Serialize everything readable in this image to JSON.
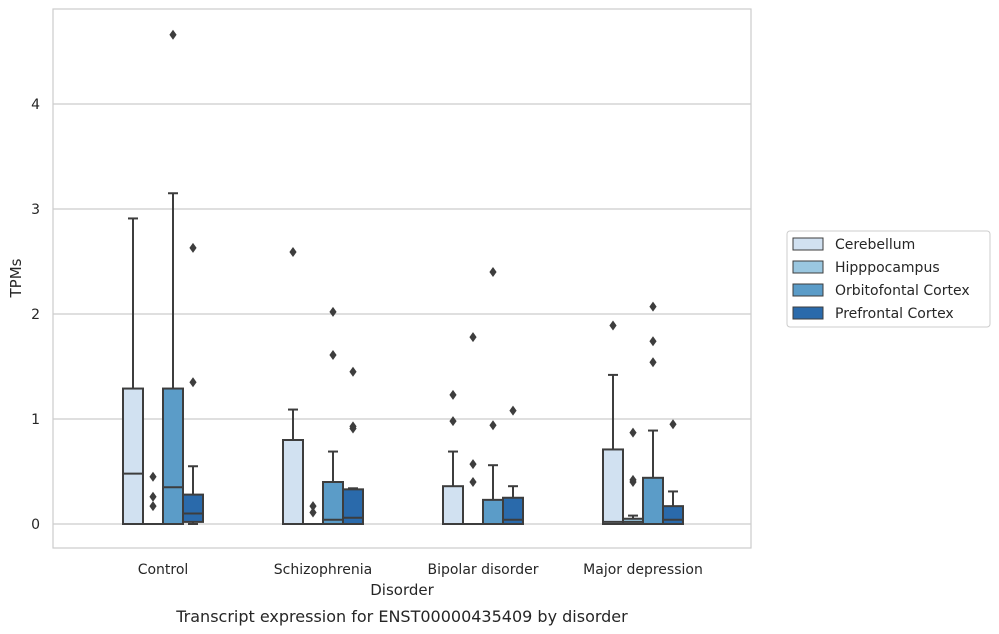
{
  "chart_data": {
    "type": "box",
    "caption": "Transcript expression for ENST00000435409 by disorder",
    "xlabel": "Disorder",
    "ylabel": "TPMs",
    "ylim": [
      -0.22,
      4.9
    ],
    "yticks": [
      0,
      1,
      2,
      3,
      4
    ],
    "ytick_labels": [
      "0",
      "1",
      "2",
      "3",
      "4"
    ],
    "grid": "horizontal",
    "legend_position": "right",
    "categories": [
      "Control",
      "Schizophrenia",
      "Bipolar disorder",
      "Major depression"
    ],
    "series": [
      {
        "name": "Cerebellum",
        "color": "#d1e1f1",
        "boxes": [
          {
            "whislo": 0,
            "q1": 0,
            "med": 0.48,
            "q3": 1.29,
            "whishi": 2.91,
            "fliers": []
          },
          {
            "whislo": 0,
            "q1": 0,
            "med": 0,
            "q3": 0.8,
            "whishi": 1.09,
            "fliers": [
              2.59
            ]
          },
          {
            "whislo": 0,
            "q1": 0,
            "med": 0,
            "q3": 0.36,
            "whishi": 0.69,
            "fliers": [
              0.98,
              1.23
            ]
          },
          {
            "whislo": 0,
            "q1": 0,
            "med": 0.02,
            "q3": 0.71,
            "whishi": 1.42,
            "fliers": [
              1.89
            ]
          }
        ]
      },
      {
        "name": "Hipppocampus",
        "color": "#9ac7e0",
        "boxes": [
          {
            "whislo": 0,
            "q1": 0,
            "med": 0,
            "q3": 0,
            "whishi": 0,
            "fliers": [
              0.17,
              0.26,
              0.45
            ]
          },
          {
            "whislo": 0,
            "q1": 0,
            "med": 0,
            "q3": 0,
            "whishi": 0,
            "fliers": [
              0.11,
              0.17
            ]
          },
          {
            "whislo": 0,
            "q1": 0,
            "med": 0,
            "q3": 0,
            "whishi": 0,
            "fliers": [
              0.4,
              0.57,
              1.78
            ]
          },
          {
            "whislo": 0,
            "q1": 0,
            "med": 0.02,
            "q3": 0.05,
            "whishi": 0.08,
            "fliers": [
              0.4,
              0.42,
              0.87
            ]
          }
        ]
      },
      {
        "name": "Orbitofontal Cortex",
        "color": "#5b9cc8",
        "boxes": [
          {
            "whislo": 0,
            "q1": 0,
            "med": 0.35,
            "q3": 1.29,
            "whishi": 3.15,
            "fliers": [
              4.66
            ]
          },
          {
            "whislo": 0,
            "q1": 0,
            "med": 0.04,
            "q3": 0.4,
            "whishi": 0.69,
            "fliers": [
              1.61,
              2.02
            ]
          },
          {
            "whislo": 0,
            "q1": 0,
            "med": 0,
            "q3": 0.23,
            "whishi": 0.56,
            "fliers": [
              0.94,
              2.4
            ]
          },
          {
            "whislo": 0,
            "q1": 0,
            "med": 0,
            "q3": 0.44,
            "whishi": 0.89,
            "fliers": [
              1.54,
              1.74,
              2.07
            ]
          }
        ]
      },
      {
        "name": "Prefrontal Cortex",
        "color": "#2a6aab",
        "boxes": [
          {
            "whislo": 0,
            "q1": 0.02,
            "med": 0.1,
            "q3": 0.28,
            "whishi": 0.55,
            "fliers": [
              1.35,
              2.63
            ]
          },
          {
            "whislo": 0,
            "q1": 0,
            "med": 0.06,
            "q3": 0.33,
            "whishi": 0.34,
            "fliers": [
              0.91,
              0.93,
              1.45
            ]
          },
          {
            "whislo": 0,
            "q1": 0,
            "med": 0.04,
            "q3": 0.25,
            "whishi": 0.36,
            "fliers": [
              1.08
            ]
          },
          {
            "whislo": 0,
            "q1": 0,
            "med": 0.04,
            "q3": 0.17,
            "whishi": 0.31,
            "fliers": [
              0.95
            ]
          }
        ]
      }
    ]
  }
}
